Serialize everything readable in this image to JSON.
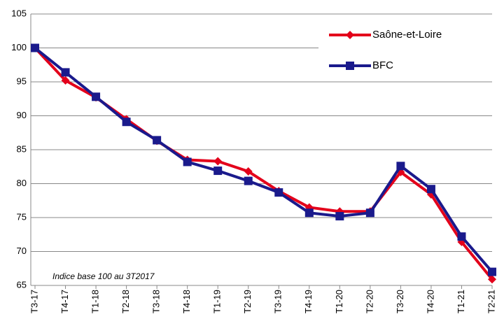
{
  "chart_data": {
    "type": "line",
    "categories": [
      "T3-17",
      "T4-17",
      "T1-18",
      "T2-18",
      "T3-18",
      "T4-18",
      "T1-19",
      "T2-19",
      "T3-19",
      "T4-19",
      "T1-20",
      "T2-20",
      "T3-20",
      "T4-20",
      "T1-21",
      "T2-21"
    ],
    "series": [
      {
        "name": "Saône-et-Loire",
        "color": "#e3001b",
        "marker": "diamond",
        "values": [
          100,
          95.2,
          92.7,
          89.5,
          86.3,
          83.5,
          83.3,
          81.8,
          78.9,
          76.5,
          75.9,
          75.9,
          81.7,
          78.4,
          71.4,
          65.9
        ]
      },
      {
        "name": "BFC",
        "color": "#1a1a8c",
        "marker": "square",
        "values": [
          100,
          96.4,
          92.8,
          89.1,
          86.4,
          83.2,
          81.9,
          80.4,
          78.7,
          75.7,
          75.2,
          75.7,
          82.6,
          79.2,
          72.2,
          67.0
        ]
      }
    ],
    "ylim": [
      65,
      105
    ],
    "yticks": [
      65,
      70,
      75,
      80,
      85,
      90,
      95,
      100,
      105
    ],
    "grid": true,
    "legend": "top-right",
    "annotation": "Indice base 100 au 3T2017"
  }
}
